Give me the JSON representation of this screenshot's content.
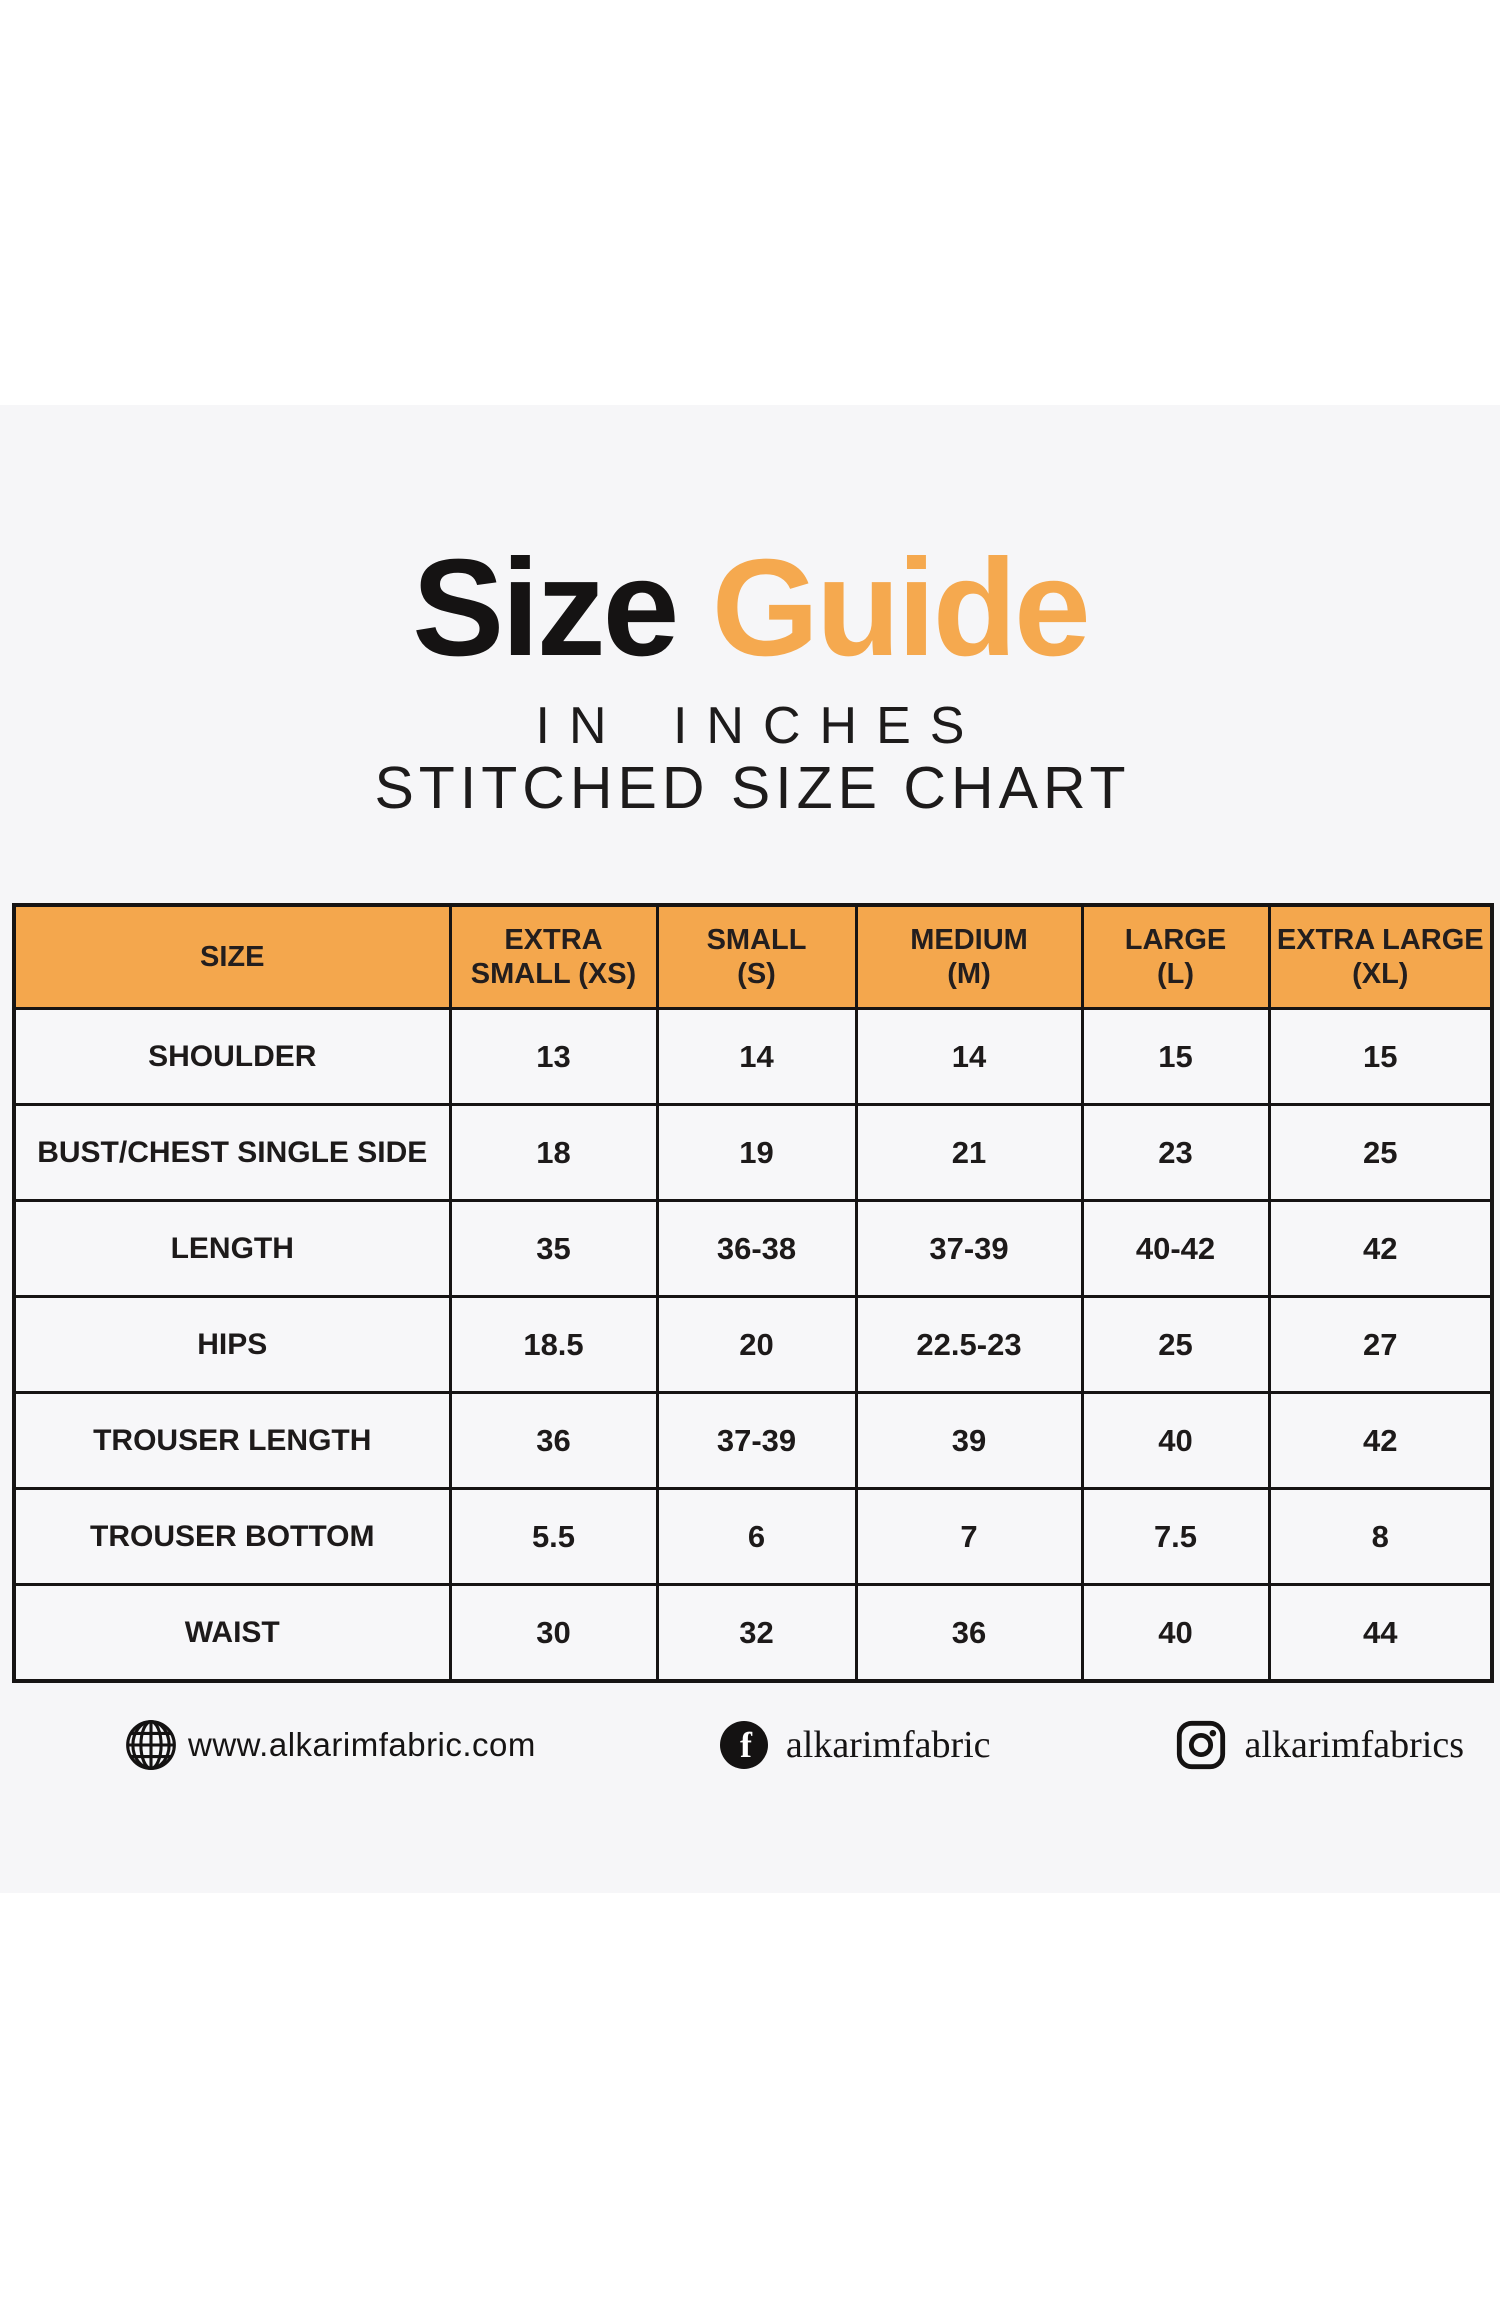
{
  "title": {
    "black": "Size",
    "orange": "Guide"
  },
  "subtitles": {
    "line1": "IN INCHES",
    "line2": "STITCHED SIZE CHART"
  },
  "chart_data": {
    "type": "table",
    "title": "Size Guide",
    "unit_note": "IN INCHES",
    "chart_note": "STITCHED SIZE CHART",
    "columns": [
      "SIZE",
      "EXTRA SMALL (XS)",
      "SMALL (S)",
      "MEDIUM (M)",
      "LARGE (L)",
      "EXTRA LARGE (XL)"
    ],
    "column_lines": [
      [
        "SIZE"
      ],
      [
        "EXTRA",
        "SMALL (XS)"
      ],
      [
        "SMALL",
        "(S)"
      ],
      [
        "MEDIUM",
        "(M)"
      ],
      [
        "LARGE",
        "(L)"
      ],
      [
        "EXTRA LARGE",
        "(XL)"
      ]
    ],
    "rows": [
      {
        "label": "SHOULDER",
        "values": [
          "13",
          "14",
          "14",
          "15",
          "15"
        ]
      },
      {
        "label": "BUST/CHEST SINGLE SIDE",
        "values": [
          "18",
          "19",
          "21",
          "23",
          "25"
        ]
      },
      {
        "label": "LENGTH",
        "values": [
          "35",
          "36-38",
          "37-39",
          "40-42",
          "42"
        ]
      },
      {
        "label": "HIPS",
        "values": [
          "18.5",
          "20",
          "22.5-23",
          "25",
          "27"
        ]
      },
      {
        "label": "TROUSER LENGTH",
        "values": [
          "36",
          "37-39",
          "39",
          "40",
          "42"
        ]
      },
      {
        "label": "TROUSER BOTTOM",
        "values": [
          "5.5",
          "6",
          "7",
          "7.5",
          "8"
        ]
      },
      {
        "label": "WAIST",
        "values": [
          "30",
          "32",
          "36",
          "40",
          "44"
        ]
      }
    ]
  },
  "footer": {
    "website": {
      "icon": "globe-icon",
      "text": "www.alkarimfabric.com"
    },
    "facebook": {
      "icon": "facebook-icon",
      "text": "alkarimfabric"
    },
    "instagram": {
      "icon": "instagram-icon",
      "text": "alkarimfabrics"
    }
  },
  "colors": {
    "title_accent": "#F5A94F",
    "table_header_bg": "#F4A74D",
    "band_bg": "#F6F6F8",
    "text_dark": "#1B1919"
  }
}
